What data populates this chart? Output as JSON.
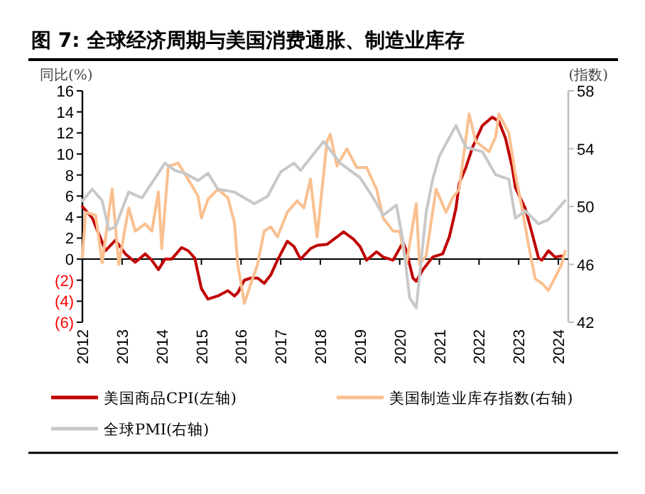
{
  "chart_data": {
    "type": "line",
    "title": "图 7: 全球经济周期与美国消费通胀、制造业库存",
    "ylabel": "同比(%)",
    "y2label": "(指数)",
    "xlim": [
      "2012-01",
      "2024-04"
    ],
    "xticks": [
      "2012",
      "2013",
      "2014",
      "2015",
      "2016",
      "2017",
      "2018",
      "2019",
      "2020",
      "2021",
      "2022",
      "2023",
      "2024"
    ],
    "ylim": [
      -6,
      16
    ],
    "yticks": [
      {
        "value": -6,
        "label": "(6)"
      },
      {
        "value": -4,
        "label": "(4)"
      },
      {
        "value": -2,
        "label": "(2)"
      },
      0,
      2,
      4,
      6,
      8,
      10,
      12,
      14,
      16
    ],
    "y2lim": [
      42,
      58
    ],
    "y2ticks": [
      42,
      46,
      50,
      54,
      58
    ],
    "legend": "bottom",
    "marker": "none",
    "line_style": "solid",
    "series": [
      {
        "name": "美国商品CPI(左轴)",
        "color": "#c00000",
        "x": [
          "2012-01",
          "2012-04",
          "2012-07",
          "2012-08",
          "2012-11",
          "2013-02",
          "2013-05",
          "2013-08",
          "2013-10",
          "2013-12",
          "2014-02",
          "2014-04",
          "2014-07",
          "2014-09",
          "2014-11",
          "2015-01",
          "2015-03",
          "2015-06",
          "2015-09",
          "2015-11",
          "2015-12",
          "2016-02",
          "2016-04",
          "2016-06",
          "2016-08",
          "2016-10",
          "2016-12",
          "2017-03",
          "2017-05",
          "2017-07",
          "2017-10",
          "2017-12",
          "2018-03",
          "2018-06",
          "2018-08",
          "2018-11",
          "2019-01",
          "2019-03",
          "2019-06",
          "2019-08",
          "2019-11",
          "2020-02",
          "2020-03",
          "2020-05",
          "2020-06",
          "2020-08",
          "2020-11",
          "2021-02",
          "2021-04",
          "2021-06",
          "2021-07",
          "2021-09",
          "2021-11",
          "2022-02",
          "2022-05",
          "2022-07",
          "2022-09",
          "2022-11",
          "2022-12",
          "2023-03",
          "2023-05",
          "2023-07",
          "2023-08",
          "2023-10",
          "2023-12",
          "2024-02"
        ],
        "values": [
          5.0,
          3.9,
          1.6,
          0.8,
          1.8,
          0.5,
          -0.3,
          0.5,
          -0.1,
          -1.0,
          0,
          0,
          1.1,
          0.8,
          0.1,
          -2.8,
          -3.8,
          -3.5,
          -3.0,
          -3.5,
          -3.2,
          -2.0,
          -1.8,
          -1.8,
          -2.3,
          -1.5,
          -0.1,
          1.7,
          1.2,
          0,
          1.0,
          1.3,
          1.4,
          2.1,
          2.6,
          1.9,
          1.2,
          -0.1,
          0.7,
          0.2,
          -0.1,
          1.6,
          0.8,
          -1.8,
          -2.1,
          -1.0,
          0.2,
          0.5,
          2.1,
          4.8,
          7.2,
          8.7,
          10.6,
          12.7,
          13.5,
          13.1,
          11.5,
          8.8,
          6.8,
          4.8,
          2.5,
          0.1,
          -0.1,
          0.8,
          0.2,
          0.3
        ]
      },
      {
        "name": "美国制造业库存指数(右轴)",
        "color": "#fac090",
        "axis": "y2",
        "x": [
          "2012-01",
          "2012-02",
          "2012-05",
          "2012-07",
          "2012-09",
          "2012-10",
          "2012-12",
          "2013-03",
          "2013-05",
          "2013-08",
          "2013-10",
          "2013-12",
          "2014-01",
          "2014-03",
          "2014-06",
          "2014-10",
          "2014-12",
          "2015-01",
          "2015-03",
          "2015-06",
          "2015-09",
          "2015-11",
          "2015-12",
          "2016-02",
          "2016-04",
          "2016-06",
          "2016-08",
          "2016-10",
          "2016-12",
          "2017-03",
          "2017-06",
          "2017-08",
          "2017-10",
          "2017-12",
          "2018-03",
          "2018-04",
          "2018-06",
          "2018-09",
          "2018-12",
          "2019-03",
          "2019-06",
          "2019-08",
          "2019-11",
          "2020-01",
          "2020-03",
          "2020-06",
          "2020-07",
          "2020-09",
          "2020-12",
          "2021-03",
          "2021-05",
          "2021-07",
          "2021-10",
          "2021-12",
          "2022-04",
          "2022-06",
          "2022-07",
          "2022-10",
          "2022-12",
          "2023-02",
          "2023-04",
          "2023-06",
          "2023-08",
          "2023-10",
          "2023-12",
          "2024-02",
          "2024-03"
        ],
        "values": [
          46.5,
          49.6,
          49.4,
          46.1,
          49.6,
          51.2,
          46.0,
          49.9,
          48.3,
          48.8,
          48.3,
          51.0,
          47.1,
          52.8,
          53.0,
          51.5,
          50.7,
          49.2,
          50.5,
          51.2,
          50.6,
          48.9,
          46.0,
          43.3,
          44.7,
          46.0,
          48.3,
          48.6,
          47.9,
          49.6,
          50.4,
          49.9,
          51.9,
          47.9,
          54.5,
          55.0,
          52.8,
          54.0,
          52.7,
          52.7,
          51.2,
          49.2,
          48.3,
          48.3,
          46.0,
          50.2,
          46.0,
          46.6,
          51.2,
          49.6,
          50.6,
          51.2,
          56.4,
          54.5,
          53.8,
          54.8,
          56.4,
          55.1,
          52.2,
          49.9,
          47.3,
          45.0,
          44.7,
          44.2,
          45.1,
          46.0,
          46.9
        ]
      },
      {
        "name": "全球PMI(右轴)",
        "color": "#c8c8c8",
        "axis": "y2",
        "x": [
          "2012-01",
          "2012-04",
          "2012-07",
          "2012-09",
          "2012-11",
          "2013-03",
          "2013-07",
          "2014-02",
          "2014-05",
          "2014-08",
          "2014-12",
          "2015-03",
          "2015-06",
          "2015-11",
          "2016-05",
          "2016-09",
          "2017-01",
          "2017-05",
          "2017-07",
          "2018-02",
          "2018-07",
          "2019-01",
          "2019-05",
          "2019-08",
          "2019-12",
          "2020-02",
          "2020-04",
          "2020-06",
          "2020-09",
          "2020-11",
          "2021-01",
          "2021-06",
          "2021-09",
          "2022-02",
          "2022-06",
          "2022-10",
          "2022-12",
          "2023-03",
          "2023-07",
          "2023-10",
          "2024-03"
        ],
        "values": [
          50.4,
          51.2,
          50.4,
          48.4,
          48.6,
          51.0,
          50.6,
          53.0,
          52.5,
          52.3,
          51.8,
          52.3,
          51.2,
          51.0,
          50.2,
          50.7,
          52.4,
          53.0,
          52.5,
          54.5,
          53.0,
          52.0,
          50.6,
          49.4,
          50.1,
          47.6,
          43.7,
          43.0,
          49.6,
          51.9,
          53.5,
          55.6,
          54.1,
          53.8,
          52.2,
          51.9,
          49.2,
          49.7,
          48.8,
          49.1,
          50.4
        ]
      }
    ]
  }
}
